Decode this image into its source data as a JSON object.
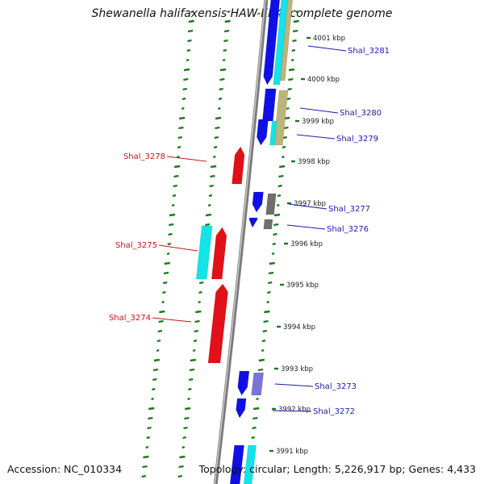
{
  "title": "Shewanella halifaxensis HAW-EB4, complete genome",
  "footer": {
    "accession": "Accession: NC_010334",
    "summary": "Topology: circular; Length: 5,226,917 bp; Genes: 4,433"
  },
  "colors": {
    "forward_cds": "#1010e6",
    "reverse_cds": "#e21018",
    "cyan_feature": "#12e4e8",
    "khaki_feature": "#bdb47a",
    "gray_feature": "#6e6e6e",
    "slate_feature": "#7a74d8",
    "backbone": "#7a7a7a",
    "gc_ticks": "#1a7a1a",
    "forward_label": "#1a1aa8",
    "reverse_label": "#c8141e"
  },
  "scale_labels": [
    "4001 kbp",
    "4000 kbp",
    "3999 kbp",
    "3998 kbp",
    "3997 kbp",
    "3996 kbp",
    "3995 kbp",
    "3994 kbp",
    "3993 kbp",
    "3992 kbp",
    "3991 kbp"
  ],
  "forward_genes": [
    "Shal_3281",
    "Shal_3280",
    "Shal_3279",
    "Shal_3277",
    "Shal_3276",
    "Shal_3273",
    "Shal_3272"
  ],
  "reverse_genes": [
    "Shal_3278",
    "Shal_3275",
    "Shal_3274"
  ]
}
